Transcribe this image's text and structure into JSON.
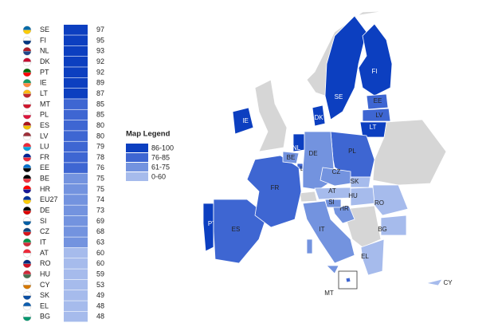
{
  "chart_data": {
    "type": "choropleth",
    "categories": [
      "SE",
      "FI",
      "NL",
      "DK",
      "PT",
      "IE",
      "LT",
      "MT",
      "PL",
      "ES",
      "LV",
      "LU",
      "FR",
      "EE",
      "BE",
      "HR",
      "EU27",
      "DE",
      "SI",
      "CZ",
      "IT",
      "AT",
      "RO",
      "HU",
      "CY",
      "SK",
      "EL",
      "BG"
    ],
    "values": [
      97,
      95,
      93,
      92,
      92,
      89,
      87,
      85,
      85,
      80,
      80,
      79,
      78,
      76,
      75,
      75,
      74,
      73,
      69,
      68,
      63,
      60,
      60,
      59,
      53,
      49,
      48,
      48
    ],
    "legend": {
      "title": "Map Legend",
      "items": [
        {
          "label": "86-100",
          "range": [
            86,
            100
          ],
          "color": "#0c3fc0"
        },
        {
          "label": "76-85",
          "range": [
            76,
            85
          ],
          "color": "#3e66d2"
        },
        {
          "label": "61-75",
          "range": [
            61,
            75
          ],
          "color": "#7393df"
        },
        {
          "label": "0-60",
          "range": [
            0,
            60
          ],
          "color": "#a6bbec"
        }
      ]
    }
  }
}
